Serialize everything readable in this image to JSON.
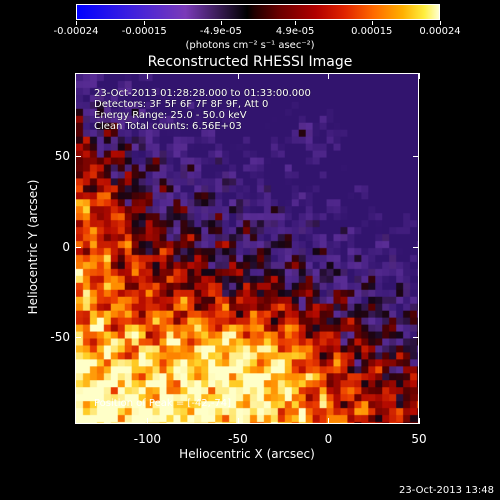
{
  "colorbar": {
    "tick_labels": [
      "-0.00024",
      "-0.00015",
      "-4.9e-05",
      "4.9e-05",
      "0.00015",
      "0.00024"
    ],
    "units": "(photons cm⁻² s⁻¹ asec⁻²)"
  },
  "title": "Reconstructed RHESSI Image",
  "info": {
    "line1": "23-Oct-2013 01:28:28.000 to 01:33:00.000",
    "line2": "Detectors: 3F 5F 6F 7F 8F 9F, Att 0",
    "line3": "Energy Range: 25.0 - 50.0 keV",
    "line4": "Clean    Total counts: 6.56E+03"
  },
  "peak_text": "Position of Peak = [-42,-74]",
  "axes": {
    "xlabel": "Heliocentric X (arcsec)",
    "ylabel": "Heliocentric Y (arcsec)",
    "xlim": [
      -140,
      50
    ],
    "ylim": [
      -98,
      96
    ],
    "xticks": [
      "-100",
      "-50",
      "0",
      "50"
    ],
    "xtick_values": [
      -100,
      -50,
      0,
      50
    ],
    "yticks": [
      "50",
      "0",
      "-50"
    ],
    "ytick_values": [
      50,
      0,
      -50
    ]
  },
  "timestamp": "23-Oct-2013 13:48"
}
